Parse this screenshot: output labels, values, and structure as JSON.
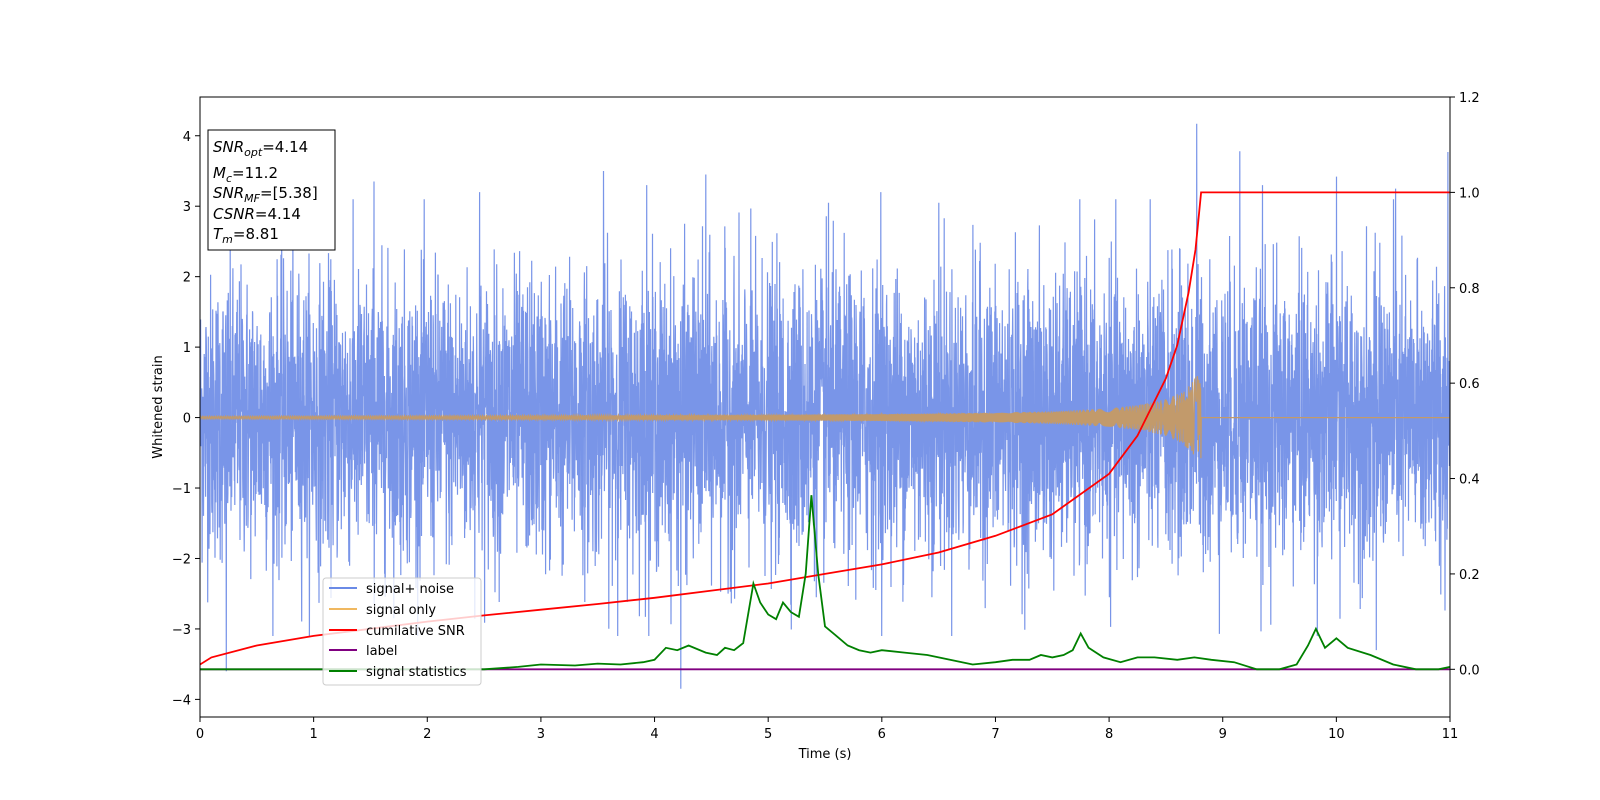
{
  "chart_data": {
    "type": "line",
    "xlabel": "Time (s)",
    "ylabel": "Whitened strain",
    "xlim": [
      0,
      11
    ],
    "ylim": [
      -4.25,
      4.55
    ],
    "y2lim": [
      -0.1,
      1.2
    ],
    "x_ticks": [
      0,
      1,
      2,
      3,
      4,
      5,
      6,
      7,
      8,
      9,
      10,
      11
    ],
    "y_ticks": [
      -4,
      -3,
      -2,
      -1,
      0,
      1,
      2,
      3,
      4
    ],
    "y2_ticks": [
      0.0,
      0.2,
      0.4,
      0.6,
      0.8,
      1.0,
      1.2
    ],
    "grid": false,
    "legend_position": "lower-left",
    "info_box": {
      "snr_opt": "4.14",
      "mc": "11.2",
      "snr_mf": "[5.38]",
      "csnr": "4.14",
      "tm": "8.81"
    },
    "series": [
      {
        "name": "signal+ noise",
        "axis": "left",
        "color": "#6a8ae6",
        "kind": "noise",
        "std": 1.0,
        "x_range": [
          0,
          11
        ],
        "peak_points": [
          [
            0.23,
            -3.6
          ],
          [
            1.53,
            3.35
          ],
          [
            2.46,
            3.2
          ],
          [
            3.55,
            3.5
          ],
          [
            3.93,
            3.3
          ],
          [
            4.23,
            -3.85
          ],
          [
            4.45,
            3.45
          ],
          [
            5.53,
            3.05
          ],
          [
            5.99,
            3.2
          ],
          [
            6.5,
            3.05
          ],
          [
            8.77,
            4.17
          ],
          [
            9.15,
            3.78
          ],
          [
            9.35,
            3.3
          ],
          [
            10.0,
            3.42
          ],
          [
            10.35,
            -3.3
          ],
          [
            10.52,
            3.25
          ],
          [
            10.98,
            3.77
          ]
        ]
      },
      {
        "name": "signal only",
        "axis": "left",
        "color": "#c29a6b",
        "kind": "chirp",
        "t_merger": 8.81,
        "peak_amplitude": 0.7,
        "points": [
          [
            0,
            0.02
          ],
          [
            3,
            0.03
          ],
          [
            5,
            0.04
          ],
          [
            6,
            0.05
          ],
          [
            7,
            0.07
          ],
          [
            7.5,
            0.09
          ],
          [
            8,
            0.13
          ],
          [
            8.3,
            0.19
          ],
          [
            8.5,
            0.26
          ],
          [
            8.65,
            0.37
          ],
          [
            8.75,
            0.55
          ],
          [
            8.81,
            0.7
          ],
          [
            8.811,
            0.0
          ],
          [
            11,
            0.0
          ]
        ]
      },
      {
        "name": "cumilative SNR",
        "axis": "right",
        "color": "#ff0000",
        "points": [
          [
            0,
            0.01
          ],
          [
            0.1,
            0.025
          ],
          [
            0.5,
            0.05
          ],
          [
            1,
            0.07
          ],
          [
            1.5,
            0.085
          ],
          [
            2,
            0.1
          ],
          [
            2.5,
            0.113
          ],
          [
            3,
            0.125
          ],
          [
            3.5,
            0.137
          ],
          [
            4,
            0.15
          ],
          [
            4.5,
            0.165
          ],
          [
            5,
            0.18
          ],
          [
            5.5,
            0.2
          ],
          [
            6,
            0.22
          ],
          [
            6.5,
            0.245
          ],
          [
            7,
            0.28
          ],
          [
            7.5,
            0.325
          ],
          [
            8,
            0.41
          ],
          [
            8.25,
            0.49
          ],
          [
            8.5,
            0.61
          ],
          [
            8.6,
            0.68
          ],
          [
            8.7,
            0.79
          ],
          [
            8.76,
            0.88
          ],
          [
            8.81,
            1.0
          ],
          [
            11,
            1.0
          ]
        ]
      },
      {
        "name": "label",
        "axis": "right",
        "color": "#800080",
        "points": [
          [
            0,
            0.0
          ],
          [
            11,
            0.0
          ]
        ]
      },
      {
        "name": "signal statistics",
        "axis": "right",
        "color": "#008000",
        "points": [
          [
            0,
            0.0
          ],
          [
            1,
            0.0
          ],
          [
            2,
            0.0
          ],
          [
            2.5,
            0.0
          ],
          [
            2.8,
            0.005
          ],
          [
            3.0,
            0.01
          ],
          [
            3.3,
            0.008
          ],
          [
            3.5,
            0.012
          ],
          [
            3.7,
            0.01
          ],
          [
            3.9,
            0.015
          ],
          [
            4.0,
            0.02
          ],
          [
            4.1,
            0.045
          ],
          [
            4.2,
            0.04
          ],
          [
            4.3,
            0.05
          ],
          [
            4.45,
            0.035
          ],
          [
            4.55,
            0.03
          ],
          [
            4.62,
            0.045
          ],
          [
            4.7,
            0.04
          ],
          [
            4.78,
            0.055
          ],
          [
            4.87,
            0.18
          ],
          [
            4.93,
            0.14
          ],
          [
            5.0,
            0.115
          ],
          [
            5.07,
            0.105
          ],
          [
            5.13,
            0.14
          ],
          [
            5.2,
            0.12
          ],
          [
            5.27,
            0.11
          ],
          [
            5.33,
            0.2
          ],
          [
            5.38,
            0.365
          ],
          [
            5.44,
            0.2
          ],
          [
            5.5,
            0.09
          ],
          [
            5.6,
            0.07
          ],
          [
            5.7,
            0.05
          ],
          [
            5.8,
            0.04
          ],
          [
            5.9,
            0.035
          ],
          [
            6.0,
            0.04
          ],
          [
            6.2,
            0.035
          ],
          [
            6.4,
            0.03
          ],
          [
            6.6,
            0.02
          ],
          [
            6.8,
            0.01
          ],
          [
            7.0,
            0.015
          ],
          [
            7.15,
            0.02
          ],
          [
            7.3,
            0.02
          ],
          [
            7.4,
            0.03
          ],
          [
            7.5,
            0.025
          ],
          [
            7.6,
            0.03
          ],
          [
            7.68,
            0.04
          ],
          [
            7.75,
            0.075
          ],
          [
            7.82,
            0.045
          ],
          [
            7.95,
            0.025
          ],
          [
            8.1,
            0.015
          ],
          [
            8.25,
            0.025
          ],
          [
            8.4,
            0.025
          ],
          [
            8.6,
            0.02
          ],
          [
            8.75,
            0.025
          ],
          [
            8.9,
            0.02
          ],
          [
            9.1,
            0.015
          ],
          [
            9.3,
            0.0
          ],
          [
            9.5,
            0.0
          ],
          [
            9.65,
            0.01
          ],
          [
            9.75,
            0.05
          ],
          [
            9.82,
            0.085
          ],
          [
            9.9,
            0.045
          ],
          [
            10.0,
            0.065
          ],
          [
            10.1,
            0.045
          ],
          [
            10.3,
            0.03
          ],
          [
            10.5,
            0.01
          ],
          [
            10.7,
            0.0
          ],
          [
            10.9,
            0.0
          ],
          [
            11.0,
            0.005
          ]
        ]
      }
    ]
  }
}
